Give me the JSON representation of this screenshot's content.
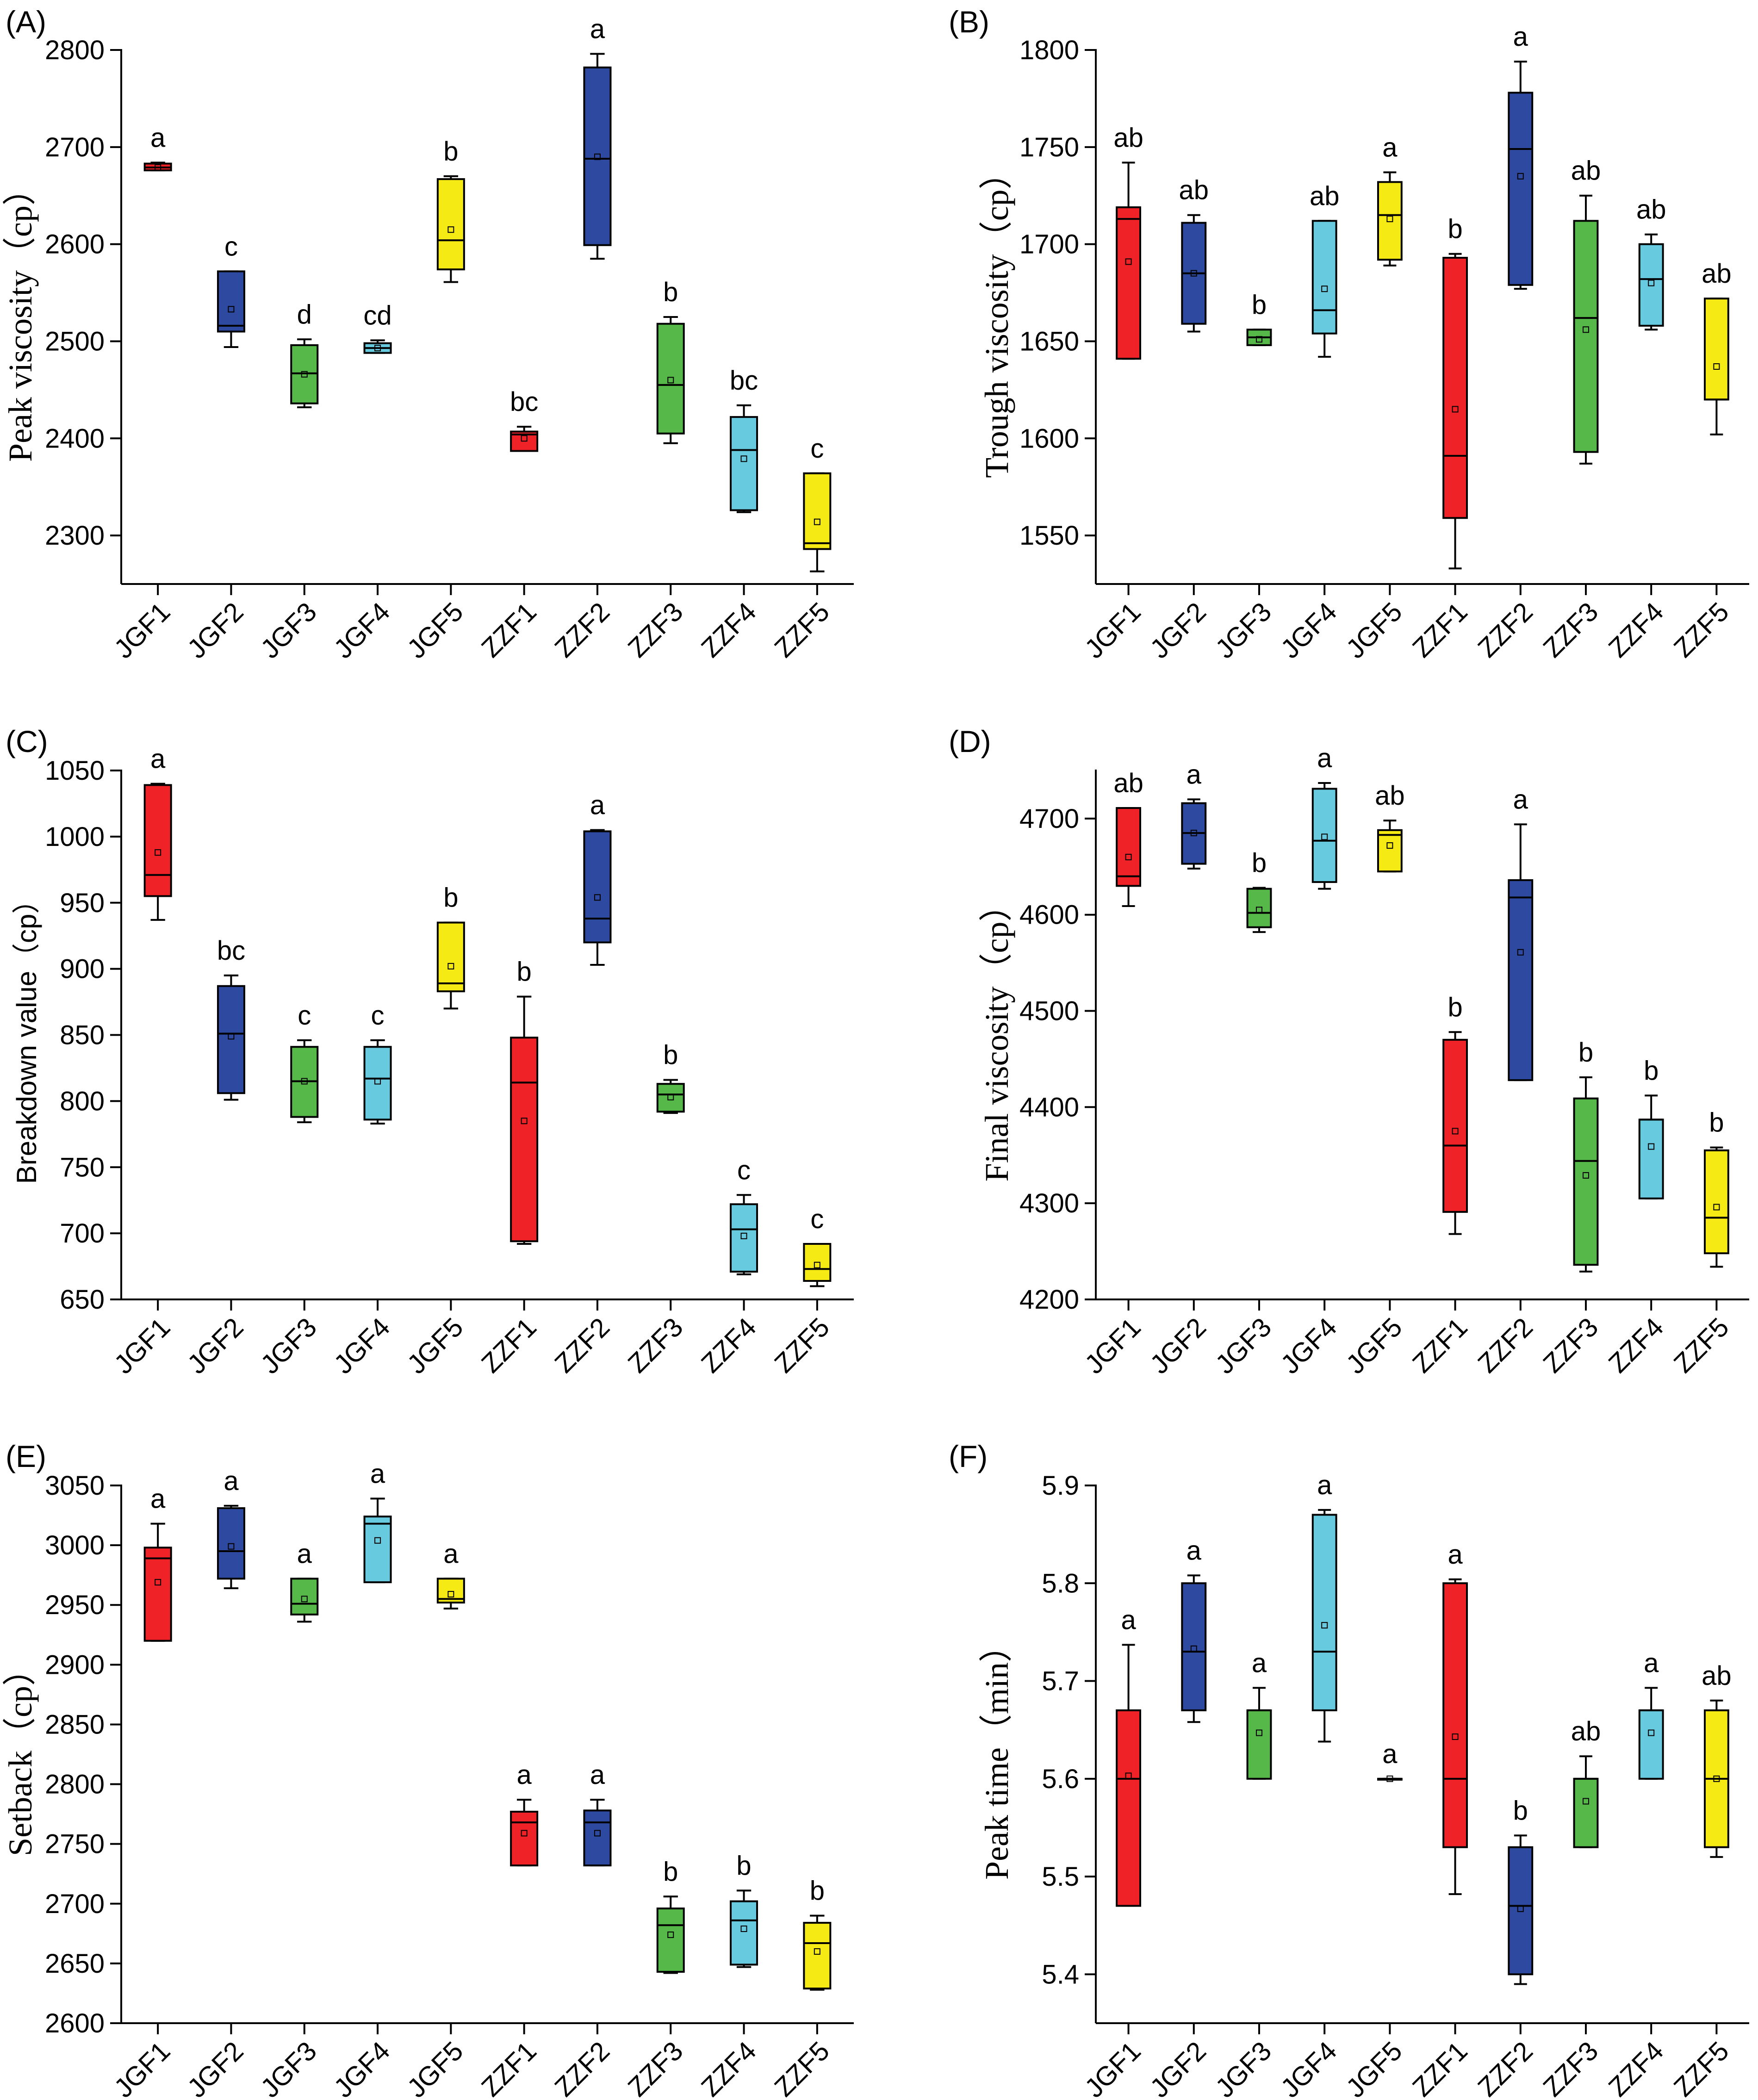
{
  "colors": {
    "JGF1": "#ee2227",
    "JGF2": "#2e4aa0",
    "JGF3": "#55b848",
    "JGF4": "#68cadf",
    "JGF5": "#f5ea14",
    "ZZF1": "#ee2227",
    "ZZF2": "#2e4aa0",
    "ZZF3": "#55b848",
    "ZZF4": "#68cadf",
    "ZZF5": "#f5ea14"
  },
  "chart_data": [
    {
      "panel": "(A)",
      "type": "box",
      "ylabel": "Peak viscosity（cp）",
      "ylim": [
        2250,
        2800
      ],
      "yticks": [
        2300,
        2400,
        2500,
        2600,
        2700,
        2800
      ],
      "categories": [
        "JGF1",
        "JGF2",
        "JGF3",
        "JGF4",
        "JGF5",
        "ZZF1",
        "ZZF2",
        "ZZF3",
        "ZZF4",
        "ZZF5"
      ],
      "boxes": [
        {
          "min": 2676,
          "q1": 2676,
          "median": 2679,
          "q3": 2683,
          "max": 2684,
          "mean": 2679,
          "letter": "a"
        },
        {
          "min": 2494,
          "q1": 2510,
          "median": 2516,
          "q3": 2572,
          "max": 2572,
          "mean": 2533,
          "letter": "c"
        },
        {
          "min": 2432,
          "q1": 2436,
          "median": 2467,
          "q3": 2496,
          "max": 2502,
          "mean": 2466,
          "letter": "d"
        },
        {
          "min": 2488,
          "q1": 2488,
          "median": 2493,
          "q3": 2498,
          "max": 2501,
          "mean": 2493,
          "letter": "cd"
        },
        {
          "min": 2561,
          "q1": 2574,
          "median": 2604,
          "q3": 2667,
          "max": 2670,
          "mean": 2615,
          "letter": "b"
        },
        {
          "min": 2387,
          "q1": 2387,
          "median": 2404,
          "q3": 2407,
          "max": 2412,
          "mean": 2400,
          "letter": "bc"
        },
        {
          "min": 2585,
          "q1": 2599,
          "median": 2688,
          "q3": 2782,
          "max": 2796,
          "mean": 2690,
          "letter": "a"
        },
        {
          "min": 2395,
          "q1": 2405,
          "median": 2455,
          "q3": 2518,
          "max": 2525,
          "mean": 2460,
          "letter": "b"
        },
        {
          "min": 2324,
          "q1": 2326,
          "median": 2388,
          "q3": 2422,
          "max": 2434,
          "mean": 2379,
          "letter": "bc"
        },
        {
          "min": 2263,
          "q1": 2286,
          "median": 2292,
          "q3": 2364,
          "max": 2364,
          "mean": 2314,
          "letter": "c"
        }
      ]
    },
    {
      "panel": "(B)",
      "type": "box",
      "ylabel": "Trough viscosity（cp）",
      "ylim": [
        1525,
        1800
      ],
      "yticks": [
        1550,
        1600,
        1650,
        1700,
        1750,
        1800
      ],
      "categories": [
        "JGF1",
        "JGF2",
        "JGF3",
        "JGF4",
        "JGF5",
        "ZZF1",
        "ZZF2",
        "ZZF3",
        "ZZF4",
        "ZZF5"
      ],
      "boxes": [
        {
          "min": 1641,
          "q1": 1641,
          "median": 1713,
          "q3": 1719,
          "max": 1742,
          "mean": 1691,
          "letter": "ab"
        },
        {
          "min": 1655,
          "q1": 1659,
          "median": 1685,
          "q3": 1711,
          "max": 1715,
          "mean": 1685,
          "letter": "ab"
        },
        {
          "min": 1648,
          "q1": 1648,
          "median": 1652,
          "q3": 1656,
          "max": 1656,
          "mean": 1651,
          "letter": "b"
        },
        {
          "min": 1642,
          "q1": 1654,
          "median": 1666,
          "q3": 1712,
          "max": 1712,
          "mean": 1677,
          "letter": "ab"
        },
        {
          "min": 1689,
          "q1": 1692,
          "median": 1715,
          "q3": 1732,
          "max": 1737,
          "mean": 1713,
          "letter": "a"
        },
        {
          "min": 1533,
          "q1": 1559,
          "median": 1591,
          "q3": 1693,
          "max": 1695,
          "mean": 1615,
          "letter": "b"
        },
        {
          "min": 1677,
          "q1": 1679,
          "median": 1749,
          "q3": 1778,
          "max": 1794,
          "mean": 1735,
          "letter": "a"
        },
        {
          "min": 1587,
          "q1": 1593,
          "median": 1662,
          "q3": 1712,
          "max": 1725,
          "mean": 1656,
          "letter": "ab"
        },
        {
          "min": 1656,
          "q1": 1658,
          "median": 1682,
          "q3": 1700,
          "max": 1705,
          "mean": 1680,
          "letter": "ab"
        },
        {
          "min": 1602,
          "q1": 1620,
          "median": 1620,
          "q3": 1672,
          "max": 1672,
          "mean": 1637,
          "letter": "ab"
        }
      ]
    },
    {
      "panel": "(C)",
      "type": "box",
      "ylabel": "Breakdown value（cp）",
      "ylim": [
        650,
        1050
      ],
      "yticks": [
        650,
        700,
        750,
        800,
        850,
        900,
        950,
        1000,
        1050
      ],
      "categories": [
        "JGF1",
        "JGF2",
        "JGF3",
        "JGF4",
        "JGF5",
        "ZZF1",
        "ZZF2",
        "ZZF3",
        "ZZF4",
        "ZZF5"
      ],
      "boxes": [
        {
          "min": 937,
          "q1": 955,
          "median": 971,
          "q3": 1039,
          "max": 1040,
          "mean": 988,
          "letter": "a"
        },
        {
          "min": 801,
          "q1": 806,
          "median": 851,
          "q3": 887,
          "max": 895,
          "mean": 849,
          "letter": "bc"
        },
        {
          "min": 784,
          "q1": 788,
          "median": 815,
          "q3": 841,
          "max": 846,
          "mean": 815,
          "letter": "c"
        },
        {
          "min": 783,
          "q1": 786,
          "median": 817,
          "q3": 841,
          "max": 846,
          "mean": 815,
          "letter": "c"
        },
        {
          "min": 870,
          "q1": 883,
          "median": 889,
          "q3": 935,
          "max": 935,
          "mean": 902,
          "letter": "b"
        },
        {
          "min": 692,
          "q1": 694,
          "median": 814,
          "q3": 848,
          "max": 879,
          "mean": 785,
          "letter": "b"
        },
        {
          "min": 903,
          "q1": 920,
          "median": 938,
          "q3": 1004,
          "max": 1005,
          "mean": 954,
          "letter": "a"
        },
        {
          "min": 791,
          "q1": 792,
          "median": 805,
          "q3": 813,
          "max": 816,
          "mean": 803,
          "letter": "b"
        },
        {
          "min": 669,
          "q1": 671,
          "median": 703,
          "q3": 722,
          "max": 729,
          "mean": 698,
          "letter": "c"
        },
        {
          "min": 660,
          "q1": 664,
          "median": 673,
          "q3": 692,
          "max": 692,
          "mean": 676,
          "letter": "c"
        }
      ]
    },
    {
      "panel": "(D)",
      "type": "box",
      "ylabel": "Final viscosity（cp）",
      "ylim": [
        4200,
        4750
      ],
      "yticks": [
        4200,
        4300,
        4400,
        4500,
        4600,
        4700
      ],
      "categories": [
        "JGF1",
        "JGF2",
        "JGF3",
        "JGF4",
        "JGF5",
        "ZZF1",
        "ZZF2",
        "ZZF3",
        "ZZF4",
        "ZZF5"
      ],
      "boxes": [
        {
          "min": 4609,
          "q1": 4630,
          "median": 4640,
          "q3": 4711,
          "max": 4711,
          "mean": 4660,
          "letter": "ab"
        },
        {
          "min": 4648,
          "q1": 4653,
          "median": 4685,
          "q3": 4716,
          "max": 4720,
          "mean": 4685,
          "letter": "a"
        },
        {
          "min": 4582,
          "q1": 4587,
          "median": 4602,
          "q3": 4627,
          "max": 4628,
          "mean": 4605,
          "letter": "b"
        },
        {
          "min": 4627,
          "q1": 4634,
          "median": 4677,
          "q3": 4731,
          "max": 4737,
          "mean": 4681,
          "letter": "a"
        },
        {
          "min": 4645,
          "q1": 4645,
          "median": 4683,
          "q3": 4688,
          "max": 4698,
          "mean": 4672,
          "letter": "ab"
        },
        {
          "min": 4268,
          "q1": 4291,
          "median": 4360,
          "q3": 4470,
          "max": 4478,
          "mean": 4375,
          "letter": "b"
        },
        {
          "min": 4428,
          "q1": 4428,
          "median": 4618,
          "q3": 4636,
          "max": 4694,
          "mean": 4561,
          "letter": "a"
        },
        {
          "min": 4229,
          "q1": 4236,
          "median": 4344,
          "q3": 4409,
          "max": 4431,
          "mean": 4329,
          "letter": "b"
        },
        {
          "min": 4305,
          "q1": 4305,
          "median": 4387,
          "q3": 4387,
          "max": 4412,
          "mean": 4359,
          "letter": "b"
        },
        {
          "min": 4234,
          "q1": 4248,
          "median": 4285,
          "q3": 4355,
          "max": 4358,
          "mean": 4296,
          "letter": "b"
        }
      ]
    },
    {
      "panel": "(E)",
      "type": "box",
      "ylabel": "Setback（cp）",
      "ylim": [
        2600,
        3050
      ],
      "yticks": [
        2600,
        2650,
        2700,
        2750,
        2800,
        2850,
        2900,
        2950,
        3000,
        3050
      ],
      "categories": [
        "JGF1",
        "JGF2",
        "JGF3",
        "JGF4",
        "JGF5",
        "ZZF1",
        "ZZF2",
        "ZZF3",
        "ZZF4",
        "ZZF5"
      ],
      "boxes": [
        {
          "min": 2920,
          "q1": 2920,
          "median": 2989,
          "q3": 2998,
          "max": 3018,
          "mean": 2969,
          "letter": "a"
        },
        {
          "min": 2964,
          "q1": 2972,
          "median": 2995,
          "q3": 3031,
          "max": 3033,
          "mean": 2999,
          "letter": "a"
        },
        {
          "min": 2936,
          "q1": 2942,
          "median": 2951,
          "q3": 2972,
          "max": 2972,
          "mean": 2955,
          "letter": "a"
        },
        {
          "min": 2969,
          "q1": 2969,
          "median": 3018,
          "q3": 3024,
          "max": 3039,
          "mean": 3004,
          "letter": "a"
        },
        {
          "min": 2947,
          "q1": 2952,
          "median": 2955,
          "q3": 2972,
          "max": 2972,
          "mean": 2959,
          "letter": "a"
        },
        {
          "min": 2732,
          "q1": 2732,
          "median": 2768,
          "q3": 2777,
          "max": 2787,
          "mean": 2759,
          "letter": "a"
        },
        {
          "min": 2732,
          "q1": 2732,
          "median": 2768,
          "q3": 2778,
          "max": 2787,
          "mean": 2759,
          "letter": "a"
        },
        {
          "min": 2642,
          "q1": 2643,
          "median": 2682,
          "q3": 2696,
          "max": 2706,
          "mean": 2674,
          "letter": "b"
        },
        {
          "min": 2647,
          "q1": 2649,
          "median": 2686,
          "q3": 2702,
          "max": 2711,
          "mean": 2679,
          "letter": "b"
        },
        {
          "min": 2628,
          "q1": 2629,
          "median": 2667,
          "q3": 2684,
          "max": 2690,
          "mean": 2660,
          "letter": "b"
        }
      ]
    },
    {
      "panel": "(F)",
      "type": "box",
      "ylabel": "Peak time（min）",
      "ylim": [
        5.35,
        5.9
      ],
      "yticks": [
        5.4,
        5.5,
        5.6,
        5.7,
        5.8,
        5.9
      ],
      "categories": [
        "JGF1",
        "JGF2",
        "JGF3",
        "JGF4",
        "JGF5",
        "ZZF1",
        "ZZF2",
        "ZZF3",
        "ZZF4",
        "ZZF5"
      ],
      "boxes": [
        {
          "min": 5.47,
          "q1": 5.47,
          "median": 5.6,
          "q3": 5.67,
          "max": 5.737,
          "mean": 5.603,
          "letter": "a"
        },
        {
          "min": 5.658,
          "q1": 5.67,
          "median": 5.73,
          "q3": 5.8,
          "max": 5.808,
          "mean": 5.733,
          "letter": "a"
        },
        {
          "min": 5.6,
          "q1": 5.6,
          "median": 5.67,
          "q3": 5.67,
          "max": 5.693,
          "mean": 5.647,
          "letter": "a"
        },
        {
          "min": 5.638,
          "q1": 5.67,
          "median": 5.73,
          "q3": 5.87,
          "max": 5.875,
          "mean": 5.757,
          "letter": "a"
        },
        {
          "min": 5.6,
          "q1": 5.6,
          "median": 5.6,
          "q3": 5.6,
          "max": 5.6,
          "mean": 5.6,
          "letter": "a"
        },
        {
          "min": 5.482,
          "q1": 5.53,
          "median": 5.6,
          "q3": 5.8,
          "max": 5.804,
          "mean": 5.643,
          "letter": "a"
        },
        {
          "min": 5.39,
          "q1": 5.4,
          "median": 5.47,
          "q3": 5.53,
          "max": 5.542,
          "mean": 5.467,
          "letter": "b"
        },
        {
          "min": 5.53,
          "q1": 5.53,
          "median": 5.6,
          "q3": 5.6,
          "max": 5.623,
          "mean": 5.577,
          "letter": "ab"
        },
        {
          "min": 5.6,
          "q1": 5.6,
          "median": 5.67,
          "q3": 5.67,
          "max": 5.693,
          "mean": 5.647,
          "letter": "a"
        },
        {
          "min": 5.52,
          "q1": 5.53,
          "median": 5.6,
          "q3": 5.67,
          "max": 5.68,
          "mean": 5.6,
          "letter": "ab"
        }
      ]
    }
  ]
}
